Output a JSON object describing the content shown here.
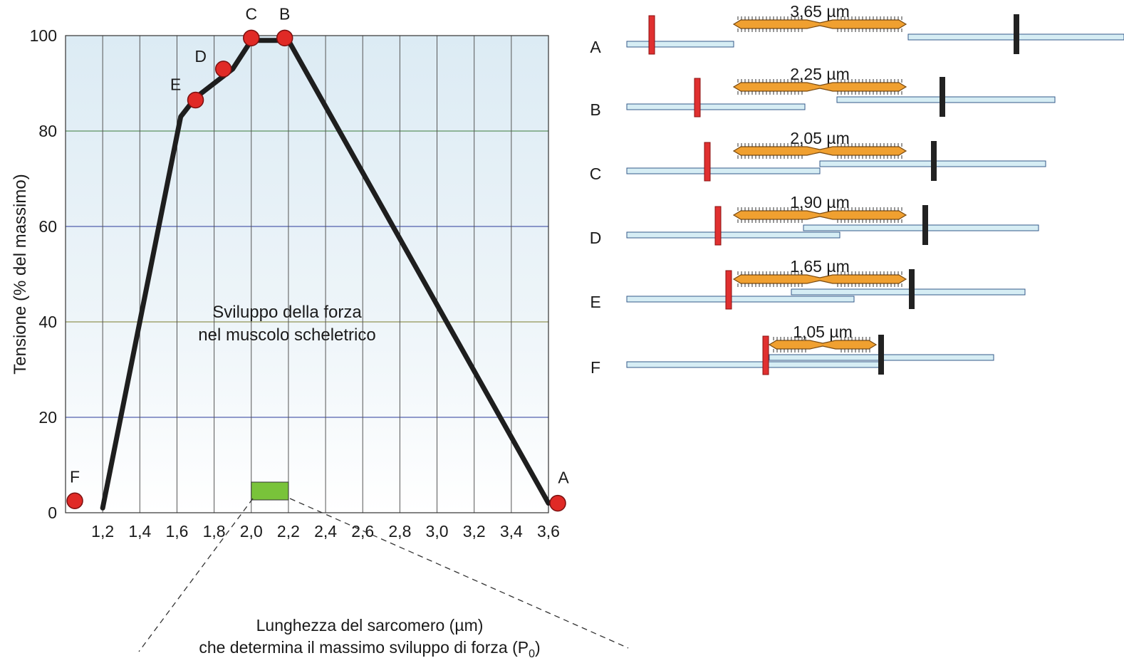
{
  "chart_data": {
    "type": "line",
    "title": "Sviluppo della forza",
    "subtitle": "nel muscolo scheletrico",
    "ylabel": "Tensione (% del massimo)",
    "xlabel": "",
    "xlim": [
      1.0,
      3.6
    ],
    "ylim": [
      0,
      100
    ],
    "grid": true,
    "x_ticks": [
      "1,2",
      "1,4",
      "1,6",
      "1,8",
      "2,0",
      "2,2",
      "2,4",
      "2,6",
      "2,8",
      "3,0",
      "3,2",
      "3,4",
      "3,6"
    ],
    "y_ticks": [
      "0",
      "20",
      "40",
      "60",
      "80",
      "100"
    ],
    "series": [
      {
        "x": [
          1.2,
          1.62,
          1.7,
          1.9,
          2.0,
          2.2,
          3.6
        ],
        "y": [
          1,
          83,
          87,
          93,
          99,
          99,
          2
        ]
      }
    ],
    "points": [
      {
        "label": "F",
        "x": 1.05,
        "y": 2.5
      },
      {
        "label": "E",
        "x": 1.7,
        "y": 86.5
      },
      {
        "label": "D",
        "x": 1.85,
        "y": 93
      },
      {
        "label": "C",
        "x": 2.0,
        "y": 99.5
      },
      {
        "label": "B",
        "x": 2.18,
        "y": 99.5
      },
      {
        "label": "A",
        "x": 3.65,
        "y": 2
      }
    ],
    "optimum_range": [
      2.0,
      2.2
    ],
    "callout": {
      "line1": "Lunghezza del sarcomero (µm)",
      "line2": "che determina il massimo sviluppo di forza (P",
      "sub": "0",
      "close": ")"
    }
  },
  "sarcomeres": [
    {
      "label": "A",
      "length": "3,65 µm"
    },
    {
      "label": "B",
      "length": "2,25 µm"
    },
    {
      "label": "C",
      "length": "2,05 µm"
    },
    {
      "label": "D",
      "length": "1,90 µm"
    },
    {
      "label": "E",
      "length": "1,65 µm"
    },
    {
      "label": "F",
      "length": "1,05 µm"
    }
  ],
  "colors": {
    "plot_bg": "#e2eff6",
    "curve": "#1e1e1e",
    "point": "#e02a26",
    "optimum_box": "#79c33a",
    "myosin": "#f0a030",
    "actin": "#d6edf4",
    "z_left": "#e03030",
    "z_right": "#222222"
  }
}
